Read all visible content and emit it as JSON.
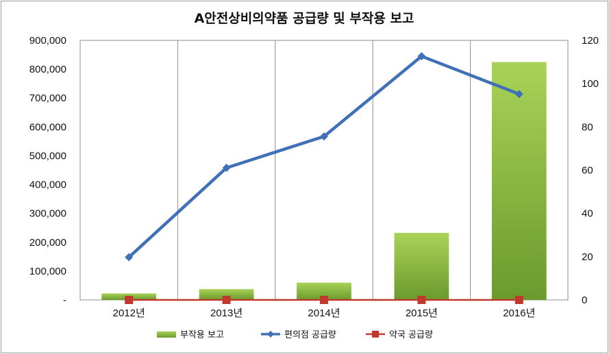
{
  "chart_data": {
    "type": "bar+line",
    "title": "A안전상비의약품 공급량 및 부작용 보고",
    "categories": [
      "2012년",
      "2013년",
      "2014년",
      "2015년",
      "2016년"
    ],
    "left_axis": {
      "ylim": [
        0,
        900000
      ],
      "ticks": [
        0,
        100000,
        200000,
        300000,
        400000,
        500000,
        600000,
        700000,
        800000,
        900000
      ],
      "tick_labels": [
        "-",
        "100,000",
        "200,000",
        "300,000",
        "400,000",
        "500,000",
        "600,000",
        "700,000",
        "800,000",
        "900,000"
      ]
    },
    "right_axis": {
      "ylim": [
        0,
        120
      ],
      "ticks": [
        0,
        20,
        40,
        60,
        80,
        100,
        120
      ],
      "tick_labels": [
        "0",
        "20",
        "40",
        "60",
        "80",
        "100",
        "120"
      ]
    },
    "series": [
      {
        "name": "부작용 보고",
        "kind": "bar",
        "axis": "right",
        "color": "#8fbf3f",
        "values": [
          3,
          5,
          8,
          31,
          110
        ]
      },
      {
        "name": "편의점 공급량",
        "kind": "line",
        "axis": "left",
        "color": "#3f70b8",
        "values": [
          148000,
          458000,
          567000,
          845000,
          714000
        ]
      },
      {
        "name": "약국 공급량",
        "kind": "line",
        "axis": "right",
        "color": "#c0392b",
        "values": [
          0,
          0,
          0,
          0,
          0
        ]
      }
    ],
    "grid": "vertical",
    "legend_position": "bottom"
  }
}
